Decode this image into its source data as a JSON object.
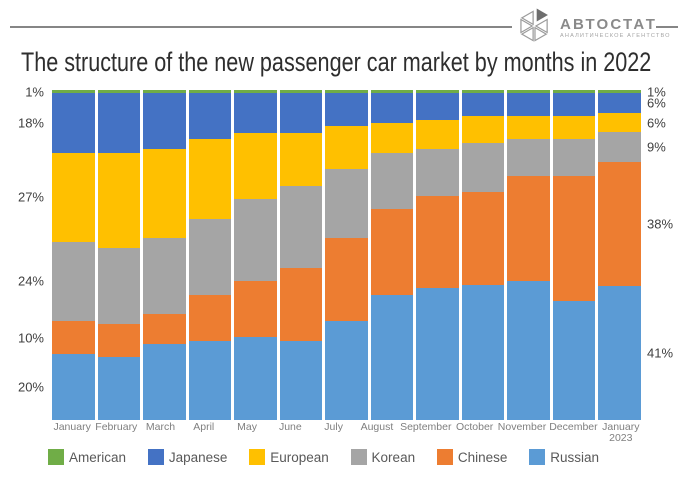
{
  "header": {
    "logo_title": "АВТОСТАТ",
    "logo_subtitle": "АНАЛИТИЧЕСКОЕ АГЕНТСТВО"
  },
  "title": "The structure of the new passenger car market by months in 2022",
  "chart_data": {
    "type": "bar",
    "subtype": "stacked-100-percent",
    "title": "The structure of the new passenger car market by months in 2022",
    "xlabel": "",
    "ylabel": "",
    "grid": false,
    "legend_position": "bottom",
    "stack_order_top_to_bottom": [
      "American",
      "Japanese",
      "European",
      "Korean",
      "Chinese",
      "Russian"
    ],
    "categories": [
      "January",
      "February",
      "March",
      "April",
      "May",
      "June",
      "July",
      "August",
      "September",
      "October",
      "November",
      "December",
      "January\n2023"
    ],
    "series": [
      {
        "name": "American",
        "color": "#70AD47",
        "values": [
          1,
          1,
          1,
          1,
          1,
          1,
          1,
          1,
          1,
          1,
          1,
          1,
          1
        ]
      },
      {
        "name": "Japanese",
        "color": "#4472C4",
        "values": [
          18,
          18,
          17,
          14,
          12,
          12,
          10,
          9,
          8,
          7,
          7,
          7,
          6
        ]
      },
      {
        "name": "European",
        "color": "#FFC000",
        "values": [
          27,
          29,
          27,
          24,
          20,
          16,
          13,
          9,
          9,
          8,
          7,
          7,
          6
        ]
      },
      {
        "name": "Korean",
        "color": "#A5A5A5",
        "values": [
          24,
          23,
          23,
          23,
          25,
          25,
          21,
          17,
          14,
          15,
          11,
          11,
          9
        ]
      },
      {
        "name": "Chinese",
        "color": "#ED7D31",
        "values": [
          10,
          10,
          9,
          14,
          17,
          22,
          25,
          26,
          28,
          28,
          32,
          38,
          38
        ]
      },
      {
        "name": "Russian",
        "color": "#5B9BD5",
        "values": [
          20,
          19,
          23,
          24,
          25,
          24,
          30,
          38,
          40,
          41,
          42,
          36,
          41
        ]
      }
    ],
    "axis_labels": {
      "left": [
        "1%",
        "18%",
        "27%",
        "24%",
        "10%",
        "20%"
      ],
      "right": [
        "1%",
        "6%",
        "6%",
        "9%",
        "38%",
        "41%"
      ]
    }
  }
}
